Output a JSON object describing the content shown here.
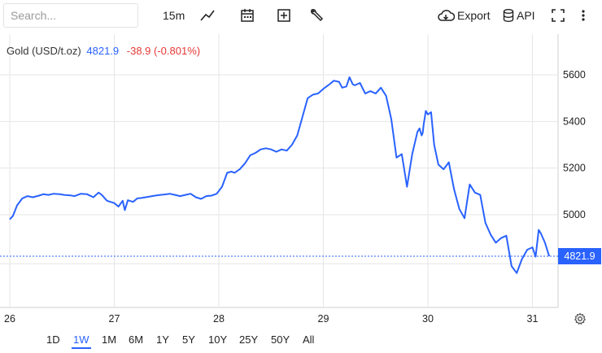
{
  "toolbar": {
    "search_placeholder": "Search...",
    "interval": "15m",
    "export_label": "Export",
    "api_label": "API",
    "icons": [
      "line-chart-icon",
      "calendar-icon",
      "add-box-icon",
      "wrench-icon",
      "cloud-download-icon",
      "database-icon",
      "fullscreen-icon",
      "more-vertical-icon"
    ]
  },
  "legend": {
    "name": "Gold (USD/t.oz)",
    "price": "4821.9",
    "change": "-38.9 (-0.801%)"
  },
  "last_price_label": "4821.9",
  "colors": {
    "line": "#2962ff",
    "down": "#e53935",
    "grid": "#e6e6e6"
  },
  "ranges": [
    "1D",
    "1W",
    "1M",
    "6M",
    "1Y",
    "5Y",
    "10Y",
    "25Y",
    "50Y",
    "All"
  ],
  "active_range": "1W",
  "chart_data": {
    "type": "line",
    "title": "Gold (USD/t.oz)",
    "xlabel": "",
    "ylabel": "",
    "x_tick_labels": [
      "26",
      "27",
      "28",
      "29",
      "30",
      "31"
    ],
    "y_tick_labels": [
      "5000",
      "5200",
      "5400",
      "5600"
    ],
    "ylim": [
      4720,
      5680
    ],
    "xlim": [
      26,
      31.2
    ],
    "last_value": 4821.9,
    "grid": true,
    "series": [
      {
        "name": "Gold (USD/t.oz)",
        "x": [
          26.0,
          26.03,
          26.07,
          26.12,
          26.17,
          26.22,
          26.28,
          26.32,
          26.37,
          26.42,
          26.48,
          26.52,
          26.58,
          26.62,
          26.68,
          26.74,
          26.8,
          26.85,
          26.88,
          26.93,
          27.0,
          27.04,
          27.08,
          27.1,
          27.13,
          27.18,
          27.22,
          27.26,
          27.3,
          27.34,
          27.39,
          27.44,
          27.48,
          27.53,
          27.58,
          27.63,
          27.68,
          27.73,
          27.78,
          27.83,
          27.88,
          27.93,
          27.98,
          28.03,
          28.08,
          28.12,
          28.15,
          28.2,
          28.25,
          28.3,
          28.35,
          28.4,
          28.45,
          28.5,
          28.55,
          28.6,
          28.65,
          28.7,
          28.75,
          28.8,
          28.85,
          28.9,
          28.95,
          29.0,
          29.03,
          29.06,
          29.1,
          29.15,
          29.18,
          29.22,
          29.25,
          29.28,
          29.3,
          29.35,
          29.4,
          29.45,
          29.5,
          29.55,
          29.6,
          29.65,
          29.7,
          29.75,
          29.8,
          29.85,
          29.9,
          29.92,
          29.94,
          29.95,
          29.96,
          29.97,
          29.98,
          30.0,
          30.03,
          30.06,
          30.1,
          30.15,
          30.2,
          30.25,
          30.3,
          30.35,
          30.4,
          30.45,
          30.5,
          30.55,
          30.6,
          30.65,
          30.7,
          30.75,
          30.8,
          30.85,
          30.9,
          30.95,
          31.0,
          31.03,
          31.06,
          31.08,
          31.12,
          31.16
        ],
        "values": [
          4980,
          4995,
          5040,
          5070,
          5080,
          5075,
          5082,
          5088,
          5085,
          5090,
          5088,
          5085,
          5083,
          5080,
          5090,
          5088,
          5075,
          5095,
          5085,
          5060,
          5050,
          5035,
          5060,
          5020,
          5062,
          5055,
          5070,
          5072,
          5075,
          5078,
          5082,
          5085,
          5087,
          5090,
          5085,
          5080,
          5085,
          5090,
          5075,
          5068,
          5080,
          5082,
          5090,
          5120,
          5180,
          5185,
          5180,
          5195,
          5220,
          5255,
          5265,
          5280,
          5285,
          5280,
          5270,
          5280,
          5275,
          5300,
          5340,
          5420,
          5500,
          5515,
          5520,
          5540,
          5550,
          5560,
          5575,
          5570,
          5545,
          5550,
          5590,
          5560,
          5555,
          5565,
          5520,
          5530,
          5520,
          5545,
          5510,
          5410,
          5245,
          5260,
          5120,
          5260,
          5355,
          5370,
          5340,
          5350,
          5390,
          5415,
          5445,
          5430,
          5440,
          5300,
          5215,
          5195,
          5225,
          5110,
          5025,
          4985,
          5130,
          5095,
          5085,
          4965,
          4915,
          4880,
          4900,
          4910,
          4780,
          4750,
          4810,
          4850,
          4860,
          4820,
          4935,
          4920,
          4880,
          4821.9
        ]
      }
    ]
  }
}
